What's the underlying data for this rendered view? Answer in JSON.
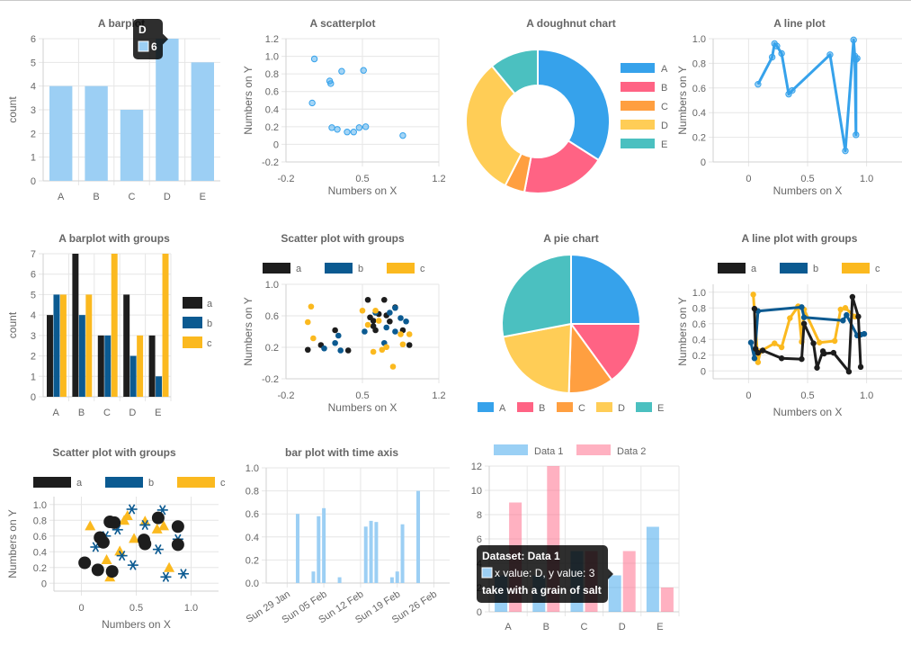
{
  "colors": {
    "blue": "#36a2eb",
    "blue_light": "#9ccff4",
    "pink": "#ff6384",
    "pink_light": "#ffb1c1",
    "orange": "#ff9f40",
    "yellow": "#ffcd56",
    "teal": "#4bc0c0",
    "black": "#1d1d1d",
    "navy": "#0b5a91",
    "gold": "#fbb91f"
  },
  "chart_data": [
    {
      "id": "barplot",
      "type": "bar",
      "title": "A barplot",
      "categories": [
        "A",
        "B",
        "C",
        "D",
        "E"
      ],
      "values": [
        4,
        4,
        3,
        6,
        5
      ],
      "xlabel": "",
      "ylabel": "count",
      "ylim": [
        0,
        6
      ],
      "yticks": [
        "0",
        "1",
        "2",
        "3",
        "4",
        "5",
        "6"
      ],
      "tooltip": {
        "title": "D",
        "lines": [
          "6"
        ]
      }
    },
    {
      "id": "scatter",
      "type": "scatter",
      "title": "A scatterplot",
      "xlabel": "Numbers on X",
      "ylabel": "Numbers on Y",
      "xlim": [
        -0.2,
        1.2
      ],
      "ylim": [
        -0.2,
        1.2
      ],
      "xticks": [
        "-0.2",
        "0.5",
        "1.2"
      ],
      "yticks": [
        "-0.2",
        "0",
        "0.2",
        "0.4",
        "0.6",
        "0.8",
        "1.0",
        "1.2"
      ],
      "x": [
        0.04,
        0.06,
        0.2,
        0.21,
        0.22,
        0.27,
        0.31,
        0.36,
        0.42,
        0.47,
        0.51,
        0.53,
        0.87
      ],
      "y": [
        0.47,
        0.97,
        0.72,
        0.69,
        0.19,
        0.17,
        0.83,
        0.14,
        0.14,
        0.19,
        0.84,
        0.2,
        0.1
      ]
    },
    {
      "id": "doughnut",
      "type": "pie",
      "title": "A doughnut chart",
      "labels": [
        "A",
        "B",
        "C",
        "D",
        "E"
      ],
      "values": [
        34,
        19,
        4.5,
        31.5,
        11
      ],
      "legend": "right"
    },
    {
      "id": "lineplot",
      "type": "line",
      "title": "A line plot",
      "xlabel": "Numbers on X",
      "ylabel": "Numbers on Y",
      "xlim": [
        -0.3,
        1.3
      ],
      "ylim": [
        0,
        1.0
      ],
      "xticks": [
        "0",
        "0.5",
        "1.0"
      ],
      "yticks": [
        "0",
        "0.2",
        "0.4",
        "0.6",
        "0.8",
        "1.0"
      ],
      "x": [
        0.08,
        0.2,
        0.22,
        0.24,
        0.28,
        0.34,
        0.37,
        0.69,
        0.82,
        0.89,
        0.9,
        0.91,
        0.91,
        0.92
      ],
      "y": [
        0.63,
        0.85,
        0.96,
        0.94,
        0.88,
        0.55,
        0.58,
        0.87,
        0.09,
        0.99,
        0.86,
        0.22,
        0.83,
        0.84
      ]
    },
    {
      "id": "bargroups",
      "type": "bar",
      "title": "A barplot with groups",
      "categories": [
        "A",
        "B",
        "C",
        "D",
        "E"
      ],
      "series": [
        {
          "name": "a",
          "values": [
            4,
            7,
            3,
            5,
            3
          ]
        },
        {
          "name": "b",
          "values": [
            5,
            4,
            3,
            2,
            1
          ]
        },
        {
          "name": "c",
          "values": [
            5,
            5,
            7,
            3,
            7
          ]
        }
      ],
      "ylabel": "count",
      "ylim": [
        0,
        7
      ],
      "yticks": [
        "0",
        "1",
        "2",
        "3",
        "4",
        "5",
        "6",
        "7"
      ],
      "legend": "right"
    },
    {
      "id": "scattergroups",
      "type": "scatter",
      "title": "Scatter plot with groups",
      "xlabel": "Numbers on X",
      "ylabel": "Numbers on Y",
      "xlim": [
        -0.2,
        1.2
      ],
      "ylim": [
        -0.2,
        1.2
      ],
      "xticks": [
        "-0.2",
        "0.5",
        "1.2"
      ],
      "yticks": [
        "-0.2",
        "0.2",
        "0.6",
        "1.0"
      ],
      "legend": "top",
      "series": [
        {
          "name": "a",
          "x": [
            0.0,
            0.12,
            0.25,
            0.37,
            0.55,
            0.57,
            0.6,
            0.6,
            0.62,
            0.65,
            0.7,
            0.72,
            0.75,
            0.8,
            0.87,
            0.93
          ],
          "y": [
            0.23,
            0.3,
            0.52,
            0.22,
            0.97,
            0.71,
            0.58,
            0.66,
            0.52,
            0.76,
            0.97,
            0.74,
            0.65,
            0.86,
            0.52,
            0.3
          ]
        },
        {
          "name": "b",
          "x": [
            0.15,
            0.25,
            0.28,
            0.3,
            0.52,
            0.62,
            0.7,
            0.72,
            0.75,
            0.8,
            0.8,
            0.85,
            0.9
          ],
          "y": [
            0.25,
            0.33,
            0.44,
            0.22,
            0.5,
            0.78,
            0.33,
            0.56,
            0.78,
            0.5,
            0.85,
            0.7,
            0.65
          ]
        },
        {
          "name": "c",
          "x": [
            0.0,
            0.03,
            0.05,
            0.5,
            0.55,
            0.6,
            0.62,
            0.65,
            0.68,
            0.72,
            0.78,
            0.85,
            0.87,
            0.93
          ],
          "y": [
            0.64,
            0.87,
            0.4,
            0.81,
            0.6,
            0.2,
            0.81,
            0.66,
            0.23,
            0.27,
            -0.02,
            0.46,
            0.31,
            0.46
          ]
        }
      ]
    },
    {
      "id": "pie",
      "type": "pie",
      "title": "A pie chart",
      "labels": [
        "A",
        "B",
        "C",
        "D",
        "E"
      ],
      "values": [
        25,
        15,
        10.5,
        21.5,
        28
      ],
      "legend": "bottom"
    },
    {
      "id": "linegroups",
      "type": "line",
      "title": "A line plot with groups",
      "xlabel": "Numbers on X",
      "ylabel": "Numbers on Y",
      "xlim": [
        -0.3,
        1.3
      ],
      "ylim": [
        -0.1,
        1.1
      ],
      "xticks": [
        "0",
        "0.5",
        "1.0"
      ],
      "yticks": [
        "0",
        "0.2",
        "0.4",
        "0.6",
        "0.8",
        "1.0"
      ],
      "legend": "top",
      "series": [
        {
          "name": "a",
          "x": [
            0.05,
            0.06,
            0.08,
            0.12,
            0.28,
            0.45,
            0.47,
            0.55,
            0.58,
            0.63,
            0.64,
            0.72,
            0.85,
            0.88,
            0.93,
            0.95
          ],
          "y": [
            0.79,
            0.28,
            0.23,
            0.26,
            0.16,
            0.15,
            0.6,
            0.35,
            0.04,
            0.25,
            0.22,
            0.23,
            -0.01,
            0.94,
            0.69,
            0.05
          ]
        },
        {
          "name": "b",
          "x": [
            0.02,
            0.05,
            0.08,
            0.45,
            0.47,
            0.8,
            0.83,
            0.92,
            0.95,
            0.98
          ],
          "y": [
            0.36,
            0.16,
            0.76,
            0.81,
            0.68,
            0.64,
            0.71,
            0.45,
            0.46,
            0.47
          ]
        },
        {
          "name": "c",
          "x": [
            0.04,
            0.08,
            0.1,
            0.22,
            0.28,
            0.35,
            0.42,
            0.45,
            0.47,
            0.6,
            0.73,
            0.78,
            0.82,
            0.9
          ],
          "y": [
            0.97,
            0.11,
            0.25,
            0.35,
            0.3,
            0.67,
            0.82,
            0.37,
            0.78,
            0.36,
            0.38,
            0.78,
            0.8,
            0.69
          ]
        }
      ]
    },
    {
      "id": "scatterbig",
      "type": "scatter",
      "title": "Scatter plot with groups",
      "xlabel": "Numbers on X",
      "ylabel": "Numbers on Y",
      "xlim": [
        -0.25,
        1.25
      ],
      "ylim": [
        -0.1,
        1.1
      ],
      "xticks": [
        "0",
        "0.5",
        "1.0"
      ],
      "yticks": [
        "0",
        "0.2",
        "0.4",
        "0.6",
        "0.8",
        "1.0"
      ],
      "legend": "top",
      "series": [
        {
          "name": "a",
          "x": [
            0.03,
            0.15,
            0.17,
            0.2,
            0.26,
            0.28,
            0.3,
            0.57,
            0.58,
            0.7,
            0.88,
            0.88
          ],
          "y": [
            0.26,
            0.17,
            0.58,
            0.52,
            0.78,
            0.15,
            0.77,
            0.55,
            0.5,
            0.83,
            0.72,
            0.49
          ]
        },
        {
          "name": "b",
          "x": [
            0.13,
            0.22,
            0.33,
            0.37,
            0.46,
            0.47,
            0.58,
            0.7,
            0.74,
            0.77,
            0.88,
            0.93
          ],
          "y": [
            0.46,
            0.6,
            0.68,
            0.35,
            0.94,
            0.23,
            0.74,
            0.43,
            0.93,
            0.08,
            0.56,
            0.12
          ]
        },
        {
          "name": "c",
          "x": [
            0.08,
            0.23,
            0.26,
            0.35,
            0.39,
            0.42,
            0.48,
            0.58,
            0.69,
            0.75,
            0.8
          ],
          "y": [
            0.73,
            0.3,
            0.08,
            0.41,
            0.8,
            0.86,
            0.57,
            0.79,
            0.69,
            0.73,
            0.2
          ]
        }
      ]
    },
    {
      "id": "timebar",
      "type": "bar",
      "title": "bar plot with time axis",
      "xlabel": "",
      "ylabel": "",
      "ylim": [
        0,
        1.0
      ],
      "yticks": [
        "0.0",
        "0.2",
        "0.4",
        "0.6",
        "0.8",
        "1.0"
      ],
      "xticks": [
        "Sun 29 Jan",
        "Sun 05 Feb",
        "Sun 12 Feb",
        "Sun 19 Feb",
        "Sun 26 Feb"
      ],
      "dates": [
        "2023-01-31",
        "2023-02-03",
        "2023-02-04",
        "2023-02-05",
        "2023-02-08",
        "2023-02-13",
        "2023-02-14",
        "2023-02-15",
        "2023-02-18",
        "2023-02-19",
        "2023-02-20",
        "2023-02-23"
      ],
      "values": [
        0.6,
        0.1,
        0.58,
        0.65,
        0.05,
        0.49,
        0.54,
        0.53,
        0.05,
        0.1,
        0.51,
        0.8
      ]
    },
    {
      "id": "databar",
      "type": "bar",
      "title": "",
      "categories": [
        "A",
        "B",
        "C",
        "D",
        "E"
      ],
      "series": [
        {
          "name": "Data 1",
          "values": [
            3,
            3,
            5,
            3,
            7
          ]
        },
        {
          "name": "Data 2",
          "values": [
            9,
            12,
            5,
            5,
            2
          ]
        }
      ],
      "ylim": [
        0,
        12
      ],
      "yticks": [
        "0",
        "2",
        "4",
        "6",
        "8",
        "10",
        "12"
      ],
      "legend": "top",
      "tooltip": {
        "title": "Dataset: Data 1",
        "lines": [
          "x value: D, y value: 3",
          "take with a grain of salt"
        ]
      }
    }
  ]
}
